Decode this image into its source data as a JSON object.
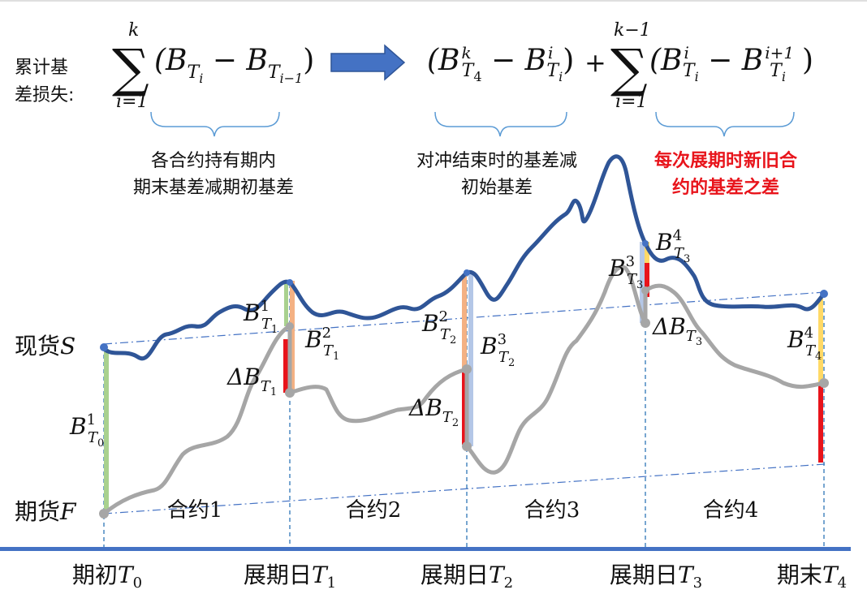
{
  "formula": {
    "prefix_line1": "累计基",
    "prefix_line2": "差损失:",
    "sum_upper_1": "k",
    "sum_lower_1": "i=1",
    "term_1": "(B",
    "term_1_sub_a": "T",
    "term_1_sub_a2": "i",
    "term_1_mid": " − B",
    "term_1_sub_b": "T",
    "term_1_sub_b2": "i−1",
    "term_1_close": ")",
    "term_2_open": "(B",
    "term_2_sup_a": "k",
    "term_2_sub_a": "T",
    "term_2_sub_a2": "4",
    "term_2_mid": " − B",
    "term_2_sup_b": "i",
    "term_2_sub_b": "T",
    "term_2_sub_b2": "i",
    "term_2_close": ")",
    "plus": "+",
    "sum_upper_2": "k−1",
    "sum_lower_2": "i=1",
    "term_3_open": "(B",
    "term_3_sup_a": "i",
    "term_3_sub_a": "T",
    "term_3_sub_a2": "i",
    "term_3_mid": " − B",
    "term_3_sup_b": "i+1",
    "term_3_sub_b": "T",
    "term_3_sub_b2": "i",
    "term_3_close": ")"
  },
  "annotations": {
    "a1_line1": "各合约持有期内",
    "a1_line2": "期末基差减期初基差",
    "a2_line1": "对冲结束时的基差减",
    "a2_line2": "初始基差",
    "a3_line1": "每次展期时新旧合",
    "a3_line2": "约的基差之差",
    "a3_color": "#e8141b"
  },
  "axis_labels": {
    "spot": "现货",
    "spot_var": "S",
    "futures": "期货",
    "futures_var": "F"
  },
  "contracts": [
    "合约1",
    "合约2",
    "合约3",
    "合约4"
  ],
  "timeline": [
    {
      "text": "期初",
      "var": "T",
      "sub": "0"
    },
    {
      "text": "展期日",
      "var": "T",
      "sub": "1"
    },
    {
      "text": "展期日",
      "var": "T",
      "sub": "2"
    },
    {
      "text": "展期日",
      "var": "T",
      "sub": "3"
    },
    {
      "text": "期末",
      "var": "T",
      "sub": "4"
    }
  ],
  "basis_labels": [
    {
      "base": "B",
      "sup": "1",
      "sub": "T",
      "sub2": "0"
    },
    {
      "base": "B",
      "sup": "1",
      "sub": "T",
      "sub2": "1"
    },
    {
      "base": "B",
      "sup": "2",
      "sub": "T",
      "sub2": "1"
    },
    {
      "base": "ΔB",
      "sup": "",
      "sub": "T",
      "sub2": "1"
    },
    {
      "base": "B",
      "sup": "2",
      "sub": "T",
      "sub2": "2"
    },
    {
      "base": "B",
      "sup": "3",
      "sub": "T",
      "sub2": "2"
    },
    {
      "base": "ΔB",
      "sup": "",
      "sub": "T",
      "sub2": "2"
    },
    {
      "base": "B",
      "sup": "3",
      "sub": "T",
      "sub2": "3"
    },
    {
      "base": "B",
      "sup": "4",
      "sub": "T",
      "sub2": "3"
    },
    {
      "base": "ΔB",
      "sup": "",
      "sub": "T",
      "sub2": "3"
    },
    {
      "base": "B",
      "sup": "4",
      "sub": "T",
      "sub2": "4"
    }
  ],
  "colors": {
    "spot_line": "#2f5597",
    "futures_line": "#a6a6a6",
    "arrow": "#4472c4",
    "axis": "#4472c4",
    "brace": "#5b9bd5",
    "green_bar": "#a9d18e",
    "orange_bar": "#f4b183",
    "light_blue_bar": "#b4c7e7",
    "yellow_bar": "#ffd966",
    "red_bar": "#e8141b"
  }
}
